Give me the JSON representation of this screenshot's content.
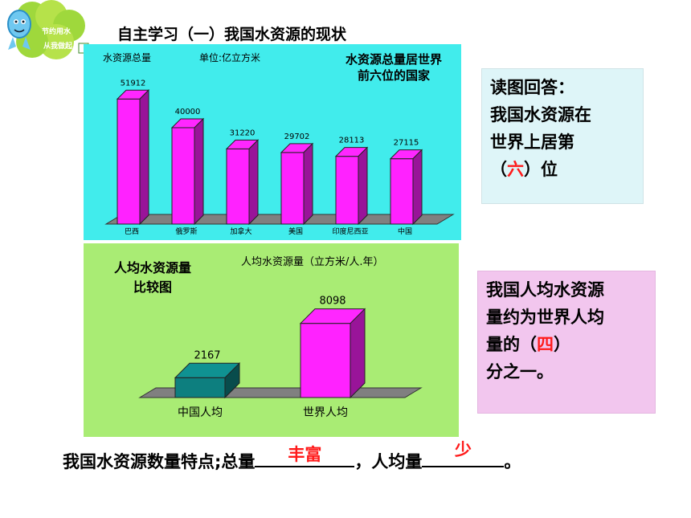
{
  "header": {
    "title": "自主学习（一）我国水资源的现状"
  },
  "logo": {
    "line1": "节约用水",
    "line2": "从我做起"
  },
  "chart_data": [
    {
      "type": "bar",
      "title": "水资源总量居世界前六位的国家",
      "title_line1": "水资源总量居世界",
      "title_line2": "前六位的国家",
      "ylabel": "水资源总量",
      "unit": "单位:亿立方米",
      "categories": [
        "巴西",
        "俄罗斯",
        "加拿大",
        "美国",
        "印度尼西亚",
        "中国"
      ],
      "values": [
        51912,
        40000,
        31220,
        29702,
        28113,
        27115
      ],
      "value_labels": [
        "51912",
        "40000",
        "31220",
        "29702",
        "28113",
        "27115"
      ],
      "ylim": [
        0,
        60000
      ],
      "bar_color": "#ff22ff"
    },
    {
      "type": "bar",
      "title": "人均水资源量比较图",
      "title_line1": "人均水资源量",
      "title_line2": "比较图",
      "ylabel": "人均水资源量（立方米/人.年）",
      "categories": [
        "中国人均",
        "世界人均"
      ],
      "values": [
        2167,
        8098
      ],
      "value_labels": [
        "2167",
        "8098"
      ],
      "ylim": [
        0,
        10000
      ],
      "colors": [
        "#0d7f7f",
        "#ff22ff"
      ]
    }
  ],
  "question1": {
    "lines": [
      "读图回答：",
      "我国水资源在",
      "世界上居第"
    ],
    "pre": "（",
    "answer": "六",
    "post": "）位"
  },
  "question2": {
    "line1": "我国人均水资源",
    "line2": "量约为世界人均",
    "pre": "量的（",
    "answer": "四",
    "post": "）",
    "line4": "分之一。"
  },
  "summary": {
    "text1": "我国水资源数量特点;总量",
    "answer1": "丰富",
    "text2": "，人均量",
    "answer2": "少",
    "text3": "。"
  }
}
